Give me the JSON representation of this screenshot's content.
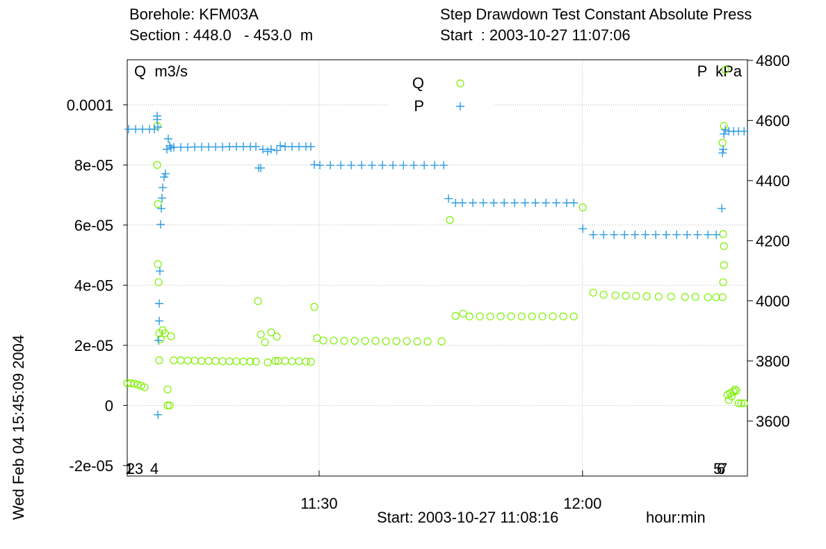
{
  "chart_data": {
    "type": "scatter",
    "header": {
      "borehole": "Borehole: KFM03A",
      "section": "Section : 448.0   - 453.0  m",
      "test": "Step Drawdown Test Constant Absolute Press",
      "start": "Start  : 2003-10-27 11:07:06"
    },
    "y_label": "Q  m3/s",
    "y2_label": "P  kPa",
    "footer_start": "Start: 2003-10-27 11:08:16",
    "x_label": "hour:min",
    "timestamp": "Wed Feb 04 15:45:09 2004",
    "xlim": [
      8.15,
      78.78
    ],
    "xticks": [
      {
        "value": 30,
        "label": "11:30"
      },
      {
        "value": 60,
        "label": "12:00"
      }
    ],
    "ylim": [
      -2.35e-05,
      0.000115
    ],
    "yticks": [
      {
        "value": -2e-05,
        "label": "-2e-05"
      },
      0,
      {
        "value": 2e-05,
        "label": "2e-05"
      },
      {
        "value": 4e-05,
        "label": "4e-05"
      },
      {
        "value": 6e-05,
        "label": "6e-05"
      },
      {
        "value": 8e-05,
        "label": "8e-05"
      },
      0.0001
    ],
    "y2lim": [
      3417,
      4802
    ],
    "y2ticks": [
      3600,
      3800,
      4000,
      4200,
      4400,
      4600,
      4800
    ],
    "grid": true,
    "events": [
      {
        "x": 8.39,
        "label": "1"
      },
      {
        "x": 8.55,
        "label": "2"
      },
      {
        "x": 9.5,
        "label": "3"
      },
      {
        "x": 11.24,
        "label": "4"
      },
      {
        "x": 75.39,
        "label": "5"
      },
      {
        "x": 75.78,
        "label": "6"
      },
      {
        "x": 76.02,
        "label": "7"
      }
    ],
    "series": [
      {
        "name": "Q",
        "color": "#7cf000",
        "marker": "circle",
        "x": [
          8.15,
          8.55,
          8.94,
          9.34,
          9.73,
          10.13,
          11.56,
          11.56,
          11.64,
          11.64,
          11.72,
          11.79,
          11.79,
          11.95,
          12.19,
          12.43,
          12.74,
          12.74,
          12.98,
          13.14,
          13.45,
          14.25,
          15.04,
          15.83,
          16.62,
          17.42,
          18.21,
          19.0,
          19.79,
          20.58,
          21.38,
          22.17,
          22.8,
          23.04,
          23.36,
          23.83,
          24.15,
          24.54,
          25.02,
          25.18,
          25.34,
          26.13,
          26.92,
          27.71,
          28.5,
          29.06,
          29.45,
          29.77,
          30.48,
          31.67,
          32.86,
          34.05,
          35.24,
          36.42,
          37.61,
          38.8,
          39.99,
          41.18,
          42.36,
          43.95,
          44.9,
          45.53,
          46.4,
          47.12,
          48.31,
          49.49,
          50.68,
          51.87,
          53.06,
          54.24,
          55.43,
          56.62,
          57.81,
          59.0,
          60.03,
          61.22,
          62.4,
          63.75,
          64.94,
          66.12,
          67.31,
          68.66,
          70.08,
          71.67,
          72.86,
          74.28,
          75.23,
          75.94,
          76.02,
          76.1,
          76.1,
          76.02,
          75.94,
          76.1,
          76.26,
          76.5,
          76.66,
          76.82,
          76.98,
          77.21,
          77.37,
          77.53,
          77.77,
          78.08,
          78.4
        ],
        "values": [
          7.4e-06,
          7.4e-06,
          7.2e-06,
          6.9e-06,
          6.5e-06,
          6e-06,
          9.3e-05,
          8e-05,
          6.7e-05,
          4.7e-05,
          4.1e-05,
          2.4e-05,
          1.5e-05,
          2.2e-05,
          2.5e-05,
          2.4e-05,
          5.3e-06,
          0,
          0,
          2.3e-05,
          1.5e-05,
          1.5e-05,
          1.49e-05,
          1.49e-05,
          1.48e-05,
          1.48e-05,
          1.48e-05,
          1.47e-05,
          1.47e-05,
          1.47e-05,
          1.46e-05,
          1.46e-05,
          1.46e-05,
          3.47e-05,
          2.36e-05,
          2.1e-05,
          1.43e-05,
          2.43e-05,
          1.48e-05,
          2.29e-05,
          1.48e-05,
          1.48e-05,
          1.47e-05,
          1.47e-05,
          1.46e-05,
          1.45e-05,
          3.28e-05,
          2.24e-05,
          2.16e-05,
          2.16e-05,
          2.15e-05,
          2.15e-05,
          2.15e-05,
          2.15e-05,
          2.14e-05,
          2.14e-05,
          2.14e-05,
          2.13e-05,
          2.13e-05,
          2.13e-05,
          6.17e-05,
          2.98e-05,
          3.05e-05,
          2.96e-05,
          2.96e-05,
          2.96e-05,
          2.96e-05,
          2.96e-05,
          2.96e-05,
          2.96e-05,
          2.96e-05,
          2.96e-05,
          2.96e-05,
          2.96e-05,
          6.59e-05,
          3.75e-05,
          3.68e-05,
          3.66e-05,
          3.65e-05,
          3.64e-05,
          3.63e-05,
          3.62e-05,
          3.62e-05,
          3.61e-05,
          3.61e-05,
          3.6e-05,
          3.6e-05,
          3.6e-05,
          4.1e-05,
          4.67e-05,
          5.3e-05,
          5.7e-05,
          8.74e-05,
          9.3e-05,
          0.0001117,
          3.5e-06,
          1.8e-06,
          4.1e-06,
          3e-06,
          4.6e-06,
          5.3e-06,
          4.9e-06,
          7e-07,
          7e-07,
          7e-07
        ]
      },
      {
        "name": "P",
        "color": "#2a9be0",
        "marker": "plus",
        "axis": "y2",
        "x": [
          8.31,
          9.1,
          9.89,
          10.68,
          11.24,
          11.56,
          11.56,
          11.64,
          11.64,
          11.72,
          11.79,
          11.79,
          11.87,
          11.95,
          12.03,
          12.11,
          12.19,
          12.35,
          12.51,
          12.66,
          12.82,
          12.98,
          13.14,
          13.45,
          14.25,
          15.04,
          15.83,
          16.62,
          17.42,
          18.21,
          19.0,
          19.79,
          20.58,
          21.38,
          22.17,
          22.8,
          23.12,
          23.36,
          23.59,
          24.15,
          24.54,
          25.18,
          25.58,
          26.13,
          26.92,
          27.71,
          28.5,
          29.06,
          29.45,
          30.09,
          31.28,
          32.47,
          33.66,
          34.84,
          36.03,
          37.22,
          38.41,
          39.6,
          40.79,
          41.97,
          43.16,
          44.19,
          44.74,
          45.53,
          46.32,
          47.51,
          48.7,
          49.89,
          51.08,
          52.26,
          53.45,
          54.64,
          55.83,
          57.02,
          58.2,
          59.0,
          60.03,
          61.22,
          62.4,
          63.59,
          64.78,
          65.97,
          67.16,
          68.34,
          69.53,
          70.72,
          71.91,
          73.1,
          74.28,
          75.23,
          75.86,
          75.94,
          76.02,
          76.1,
          76.26,
          76.66,
          77.21,
          77.77,
          78.4
        ],
        "values": [
          4571,
          4571,
          4571,
          4571,
          4571,
          4615,
          4603,
          4578,
          3621,
          3868,
          3991,
          3933,
          4099,
          4254,
          4307,
          4342,
          4377,
          4412,
          4423,
          4504,
          4539,
          4516,
          4509,
          4511,
          4511,
          4511,
          4512,
          4512,
          4512,
          4512,
          4512,
          4513,
          4513,
          4513,
          4513,
          4513,
          4442,
          4442,
          4504,
          4497,
          4504,
          4500,
          4516,
          4513,
          4513,
          4513,
          4513,
          4513,
          4453,
          4451,
          4451,
          4451,
          4451,
          4451,
          4451,
          4451,
          4451,
          4451,
          4451,
          4451,
          4451,
          4451,
          4340,
          4326,
          4326,
          4326,
          4326,
          4326,
          4326,
          4326,
          4326,
          4326,
          4326,
          4326,
          4326,
          4326,
          4240,
          4220,
          4220,
          4220,
          4220,
          4220,
          4220,
          4220,
          4220,
          4220,
          4220,
          4220,
          4220,
          4220,
          4307,
          4492,
          4504,
          4555,
          4569,
          4564,
          4564,
          4564,
          4564
        ]
      }
    ]
  }
}
